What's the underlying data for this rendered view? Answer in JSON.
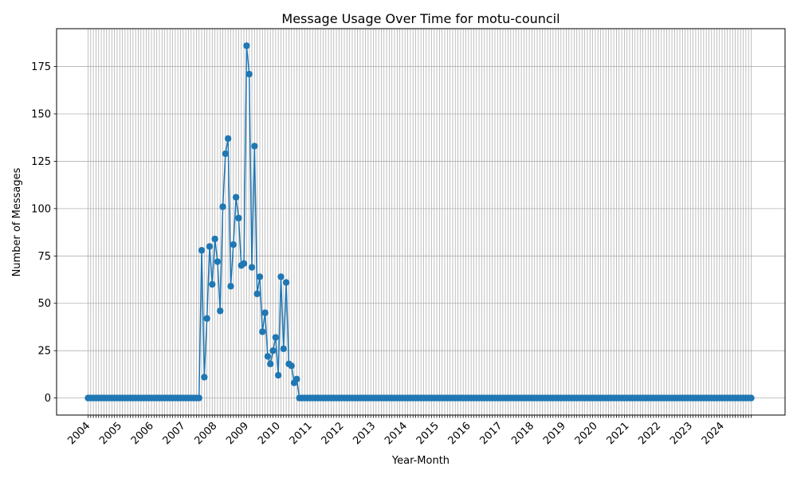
{
  "chart_data": {
    "type": "line",
    "title": "Message Usage Over Time for motu-council",
    "xlabel": "Year-Month",
    "ylabel": "Number of Messages",
    "ylim": [
      -9,
      195
    ],
    "yticks": [
      0,
      25,
      50,
      75,
      100,
      125,
      150,
      175
    ],
    "xtick_labels": [
      "2004",
      "2005",
      "2006",
      "2007",
      "2008",
      "2009",
      "2010",
      "2011",
      "2012",
      "2013",
      "2014",
      "2015",
      "2016",
      "2017",
      "2018",
      "2019",
      "2020",
      "2021",
      "2022",
      "2023",
      "2024"
    ],
    "grid": true,
    "color": "#1f77b4",
    "start": "2004-01",
    "series": [
      {
        "values": [
          0,
          0,
          0,
          0,
          0,
          0,
          0,
          0,
          0,
          0,
          0,
          0,
          0,
          0,
          0,
          0,
          0,
          0,
          0,
          0,
          0,
          0,
          0,
          0,
          0,
          0,
          0,
          0,
          0,
          0,
          0,
          0,
          0,
          0,
          0,
          0,
          0,
          0,
          0,
          0,
          0,
          0,
          0,
          78,
          11,
          42,
          80,
          60,
          84,
          72,
          46,
          101,
          129,
          137,
          59,
          81,
          106,
          95,
          70,
          71,
          186,
          171,
          69,
          133,
          55,
          64,
          35,
          45,
          22,
          18,
          25,
          32,
          12,
          64,
          26,
          61,
          18,
          17,
          8,
          10,
          0,
          0,
          0,
          0,
          0,
          0,
          0,
          0,
          0,
          0,
          0,
          0,
          0,
          0,
          0,
          0,
          0,
          0,
          0,
          0,
          0,
          0,
          0,
          0,
          0,
          0,
          0,
          0,
          0,
          0,
          0,
          0,
          0,
          0,
          0,
          0,
          0,
          0,
          0,
          0,
          0,
          0,
          0,
          0,
          0,
          0,
          0,
          0,
          0,
          0,
          0,
          0,
          0,
          0,
          0,
          0,
          0,
          0,
          0,
          0,
          0,
          0,
          0,
          0,
          0,
          0,
          0,
          0,
          0,
          0,
          0,
          0,
          0,
          0,
          0,
          0,
          0,
          0,
          0,
          0,
          0,
          0,
          0,
          0,
          0,
          0,
          0,
          0,
          0,
          0,
          0,
          0,
          0,
          0,
          0,
          0,
          0,
          0,
          0,
          0,
          0,
          0,
          0,
          0,
          0,
          0,
          0,
          0,
          0,
          0,
          0,
          0,
          0,
          0,
          0,
          0,
          0,
          0,
          0,
          0,
          0,
          0,
          0,
          0,
          0,
          0,
          0,
          0,
          0,
          0,
          0,
          0,
          0,
          0,
          0,
          0,
          0,
          0,
          0,
          0,
          0,
          0,
          0,
          0,
          0,
          0,
          0,
          0,
          0,
          0,
          0,
          0,
          0,
          0,
          0,
          0,
          0,
          0,
          0,
          0,
          0,
          0,
          0,
          0,
          0,
          0,
          0,
          0,
          0,
          0,
          0,
          0
        ]
      }
    ]
  }
}
